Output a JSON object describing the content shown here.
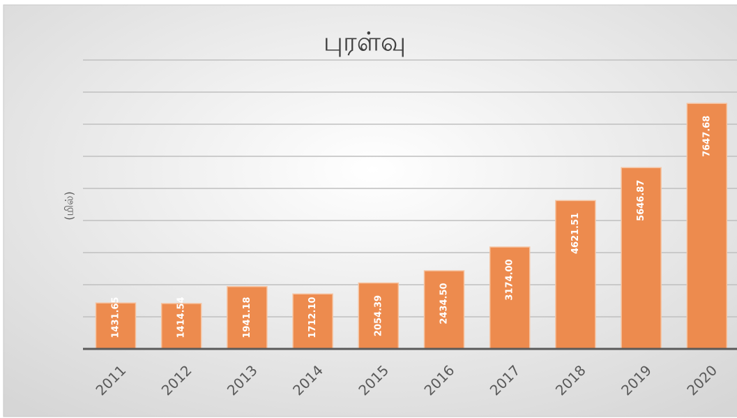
{
  "chart_data": {
    "type": "bar",
    "title": "புரள்வு",
    "y_label": "(மில்)",
    "categories": [
      "2011",
      "2012",
      "2013",
      "2014",
      "2015",
      "2016",
      "2017",
      "2018",
      "2019",
      "2020"
    ],
    "values": [
      1431.65,
      1414.54,
      1941.18,
      1712.1,
      2054.39,
      2434.5,
      3174.0,
      4621.51,
      5646.87,
      7647.68
    ],
    "value_labels": [
      "1431.65",
      "1414.54",
      "1941.18",
      "1712.10",
      "2054.39",
      "2434.50",
      "3174.00",
      "4621.51",
      "5646.87",
      "7647.68"
    ],
    "color": "#ed8b4e",
    "ylim": [
      0,
      9000
    ],
    "yticks": [
      0,
      1000,
      2000,
      3000,
      4000,
      5000,
      6000,
      7000,
      8000,
      9000
    ],
    "grid": true
  }
}
